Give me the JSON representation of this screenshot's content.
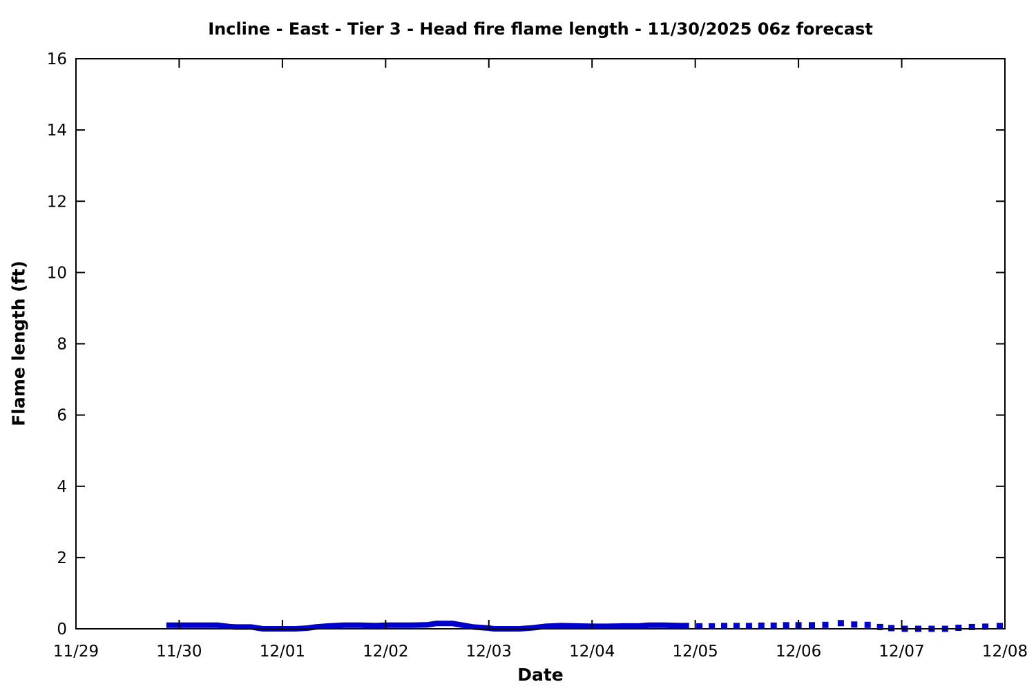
{
  "chart_data": {
    "type": "line",
    "title": "Incline - East - Tier 3 - Head fire flame length - 11/30/2025 06z forecast",
    "xlabel": "Date",
    "ylabel": "Flame length (ft)",
    "x_tick_labels": [
      "11/29",
      "11/30",
      "12/01",
      "12/02",
      "12/03",
      "12/04",
      "12/05",
      "12/06",
      "12/07",
      "12/08"
    ],
    "x_unit": "days from 11/29",
    "xlim": [
      0,
      9
    ],
    "ylim": [
      0,
      16
    ],
    "yticks": [
      0,
      2,
      4,
      6,
      8,
      10,
      12,
      14,
      16
    ],
    "grid": false,
    "legend": "none",
    "line_color": "#0000cc",
    "axis_color": "#000000",
    "background_color": "#ffffff",
    "series": [
      {
        "name": "Head fire flame length (solid segment, 11/30 - 12/05)",
        "style": "solid-thick-line",
        "x": [
          0.875,
          1.0,
          1.125,
          1.25,
          1.375,
          1.49,
          1.55,
          1.7,
          1.81,
          2.0,
          2.125,
          2.24,
          2.32,
          2.45,
          2.6,
          2.75,
          2.9,
          3.0,
          3.1,
          3.25,
          3.4,
          3.49,
          3.65,
          3.71,
          3.85,
          4.0,
          4.05,
          4.3,
          4.43,
          4.55,
          4.7,
          4.85,
          5.0,
          5.15,
          5.3,
          5.45,
          5.55,
          5.7,
          5.85,
          5.94
        ],
        "y": [
          0.1,
          0.1,
          0.1,
          0.1,
          0.1,
          0.06,
          0.05,
          0.05,
          0.0,
          0.0,
          0.0,
          0.02,
          0.05,
          0.08,
          0.1,
          0.1,
          0.09,
          0.1,
          0.1,
          0.1,
          0.11,
          0.15,
          0.15,
          0.12,
          0.05,
          0.02,
          0.0,
          0.0,
          0.03,
          0.07,
          0.09,
          0.08,
          0.07,
          0.07,
          0.08,
          0.08,
          0.1,
          0.1,
          0.09,
          0.09
        ]
      },
      {
        "name": "Head fire flame length (dotted forecast segment, 12/05 - 12/08)",
        "style": "square-dots",
        "x": [
          6.04,
          6.16,
          6.28,
          6.4,
          6.52,
          6.64,
          6.76,
          6.88,
          7.0,
          7.13,
          7.26,
          7.41,
          7.54,
          7.67,
          7.79,
          7.9,
          8.03,
          8.16,
          8.29,
          8.42,
          8.55,
          8.68,
          8.81,
          8.95
        ],
        "y": [
          0.07,
          0.07,
          0.08,
          0.08,
          0.08,
          0.09,
          0.09,
          0.1,
          0.1,
          0.1,
          0.11,
          0.16,
          0.12,
          0.11,
          0.05,
          0.02,
          0.0,
          0.0,
          0.0,
          0.0,
          0.03,
          0.05,
          0.06,
          0.08
        ]
      }
    ]
  }
}
